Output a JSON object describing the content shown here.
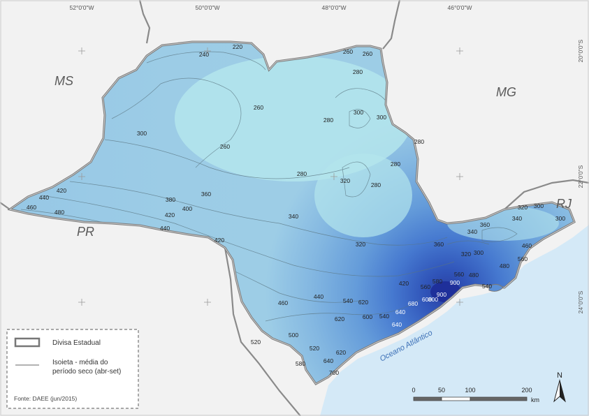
{
  "map": {
    "coords_top": [
      "52°0'0\"W",
      "50°0'0\"W",
      "48°0'0\"W",
      "46°0'0\"W"
    ],
    "coords_right": [
      "20°0'0\"S",
      "22°0'0\"S",
      "24°0'0\"S"
    ],
    "states": {
      "ms": "MS",
      "mg": "MG",
      "pr": "PR",
      "rj": "RJ"
    },
    "ocean": "Oceano Atlântico",
    "colors": {
      "ocean": "#d4e9f7",
      "land": "#f2f2f2",
      "light": "#b4e5ec",
      "dark": "#1e2f9a"
    }
  },
  "isolines": [
    {
      "id": "240",
      "text": "240"
    },
    {
      "id": "220",
      "text": "220"
    },
    {
      "id": "260a",
      "text": "260"
    },
    {
      "id": "260b",
      "text": "260"
    },
    {
      "id": "260c",
      "text": "260"
    },
    {
      "id": "260d",
      "text": "260"
    },
    {
      "id": "280a",
      "text": "280"
    },
    {
      "id": "280b",
      "text": "280"
    },
    {
      "id": "280c",
      "text": "280"
    },
    {
      "id": "280d",
      "text": "280"
    },
    {
      "id": "280e",
      "text": "280"
    },
    {
      "id": "280f",
      "text": "280"
    },
    {
      "id": "300a",
      "text": "300"
    },
    {
      "id": "300b",
      "text": "300"
    },
    {
      "id": "300c",
      "text": "300"
    },
    {
      "id": "300d",
      "text": "300"
    },
    {
      "id": "300e",
      "text": "300"
    },
    {
      "id": "300f",
      "text": "300"
    },
    {
      "id": "320a",
      "text": "320"
    },
    {
      "id": "320b",
      "text": "320"
    },
    {
      "id": "320c",
      "text": "320"
    },
    {
      "id": "320d",
      "text": "320"
    },
    {
      "id": "340a",
      "text": "340"
    },
    {
      "id": "340b",
      "text": "340"
    },
    {
      "id": "340c",
      "text": "340"
    },
    {
      "id": "360a",
      "text": "360"
    },
    {
      "id": "360b",
      "text": "360"
    },
    {
      "id": "360c",
      "text": "360"
    },
    {
      "id": "380",
      "text": "380"
    },
    {
      "id": "400",
      "text": "400"
    },
    {
      "id": "420a",
      "text": "420"
    },
    {
      "id": "420b",
      "text": "420"
    },
    {
      "id": "420c",
      "text": "420"
    },
    {
      "id": "420d",
      "text": "420"
    },
    {
      "id": "440a",
      "text": "440"
    },
    {
      "id": "440b",
      "text": "440"
    },
    {
      "id": "440c",
      "text": "440"
    },
    {
      "id": "460a",
      "text": "460"
    },
    {
      "id": "460b",
      "text": "460"
    },
    {
      "id": "460c",
      "text": "460"
    },
    {
      "id": "480a",
      "text": "480"
    },
    {
      "id": "480b",
      "text": "480"
    },
    {
      "id": "480c",
      "text": "480"
    },
    {
      "id": "500",
      "text": "500"
    },
    {
      "id": "520a",
      "text": "520"
    },
    {
      "id": "520b",
      "text": "520"
    },
    {
      "id": "540a",
      "text": "540"
    },
    {
      "id": "540b",
      "text": "540"
    },
    {
      "id": "540c",
      "text": "540"
    },
    {
      "id": "560a",
      "text": "560"
    },
    {
      "id": "560b",
      "text": "560"
    },
    {
      "id": "560c",
      "text": "560"
    },
    {
      "id": "580a",
      "text": "580"
    },
    {
      "id": "580b",
      "text": "580"
    },
    {
      "id": "600a",
      "text": "600"
    },
    {
      "id": "600b",
      "text": "600"
    },
    {
      "id": "620a",
      "text": "620"
    },
    {
      "id": "620b",
      "text": "620"
    },
    {
      "id": "620c",
      "text": "620"
    },
    {
      "id": "640a",
      "text": "640"
    },
    {
      "id": "640b",
      "text": "640"
    },
    {
      "id": "640c",
      "text": "640"
    },
    {
      "id": "680",
      "text": "680"
    },
    {
      "id": "700",
      "text": "700"
    },
    {
      "id": "800",
      "text": "800"
    },
    {
      "id": "900a",
      "text": "900"
    },
    {
      "id": "900b",
      "text": "900"
    }
  ],
  "legend": {
    "state_border": "Divisa Estadual",
    "isoline_line1": "Isoieta -  média do",
    "isoline_line2": "período seco (abr-set)",
    "source": "Fonte: DAEE (jun/2015)"
  },
  "scale": {
    "labels": [
      "0",
      "50",
      "100",
      "200"
    ],
    "unit": "km"
  },
  "north": "N"
}
